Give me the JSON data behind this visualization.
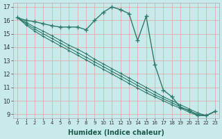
{
  "xlabel": "Humidex (Indice chaleur)",
  "bg_color": "#c8eaea",
  "grid_color": "#e8a0a0",
  "line_color": "#2d7a6a",
  "xlim": [
    -0.5,
    23.5
  ],
  "ylim": [
    8.7,
    17.3
  ],
  "yticks": [
    9,
    10,
    11,
    12,
    13,
    14,
    15,
    16,
    17
  ],
  "xticks": [
    0,
    1,
    2,
    3,
    4,
    5,
    6,
    7,
    8,
    9,
    10,
    11,
    12,
    13,
    14,
    15,
    16,
    17,
    18,
    19,
    20,
    21,
    22,
    23
  ],
  "series_main": [
    16.2,
    16.0,
    15.9,
    15.75,
    15.6,
    15.5,
    15.5,
    15.5,
    15.3,
    16.0,
    16.6,
    17.0,
    16.8,
    16.5,
    14.5,
    16.3,
    12.7,
    10.8,
    10.3,
    9.5,
    9.3,
    8.9,
    8.9,
    9.2
  ],
  "series_diag": [
    [
      16.2,
      15.85,
      15.5,
      15.2,
      14.85,
      14.5,
      14.15,
      13.85,
      13.5,
      13.1,
      12.75,
      12.4,
      12.05,
      11.7,
      11.35,
      11.0,
      10.65,
      10.3,
      10.0,
      9.7,
      9.4,
      9.1,
      8.9,
      9.2
    ],
    [
      16.2,
      15.75,
      15.35,
      15.0,
      14.65,
      14.3,
      13.95,
      13.6,
      13.25,
      12.9,
      12.55,
      12.2,
      11.85,
      11.5,
      11.15,
      10.8,
      10.45,
      10.15,
      9.85,
      9.55,
      9.25,
      9.0,
      8.9,
      9.2
    ],
    [
      16.2,
      15.65,
      15.2,
      14.8,
      14.45,
      14.1,
      13.75,
      13.4,
      13.05,
      12.7,
      12.35,
      12.0,
      11.65,
      11.3,
      10.95,
      10.6,
      10.3,
      10.0,
      9.7,
      9.45,
      9.15,
      8.9,
      8.9,
      9.2
    ]
  ]
}
